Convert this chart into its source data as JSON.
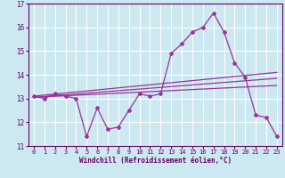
{
  "xlabel": "Windchill (Refroidissement éolien,°C)",
  "bg_color": "#cce8f0",
  "line_color": "#993399",
  "grid_color": "#ffffff",
  "xlim": [
    -0.5,
    23.5
  ],
  "ylim": [
    11,
    17
  ],
  "yticks": [
    11,
    12,
    13,
    14,
    15,
    16,
    17
  ],
  "xticks": [
    0,
    1,
    2,
    3,
    4,
    5,
    6,
    7,
    8,
    9,
    10,
    11,
    12,
    13,
    14,
    15,
    16,
    17,
    18,
    19,
    20,
    21,
    22,
    23
  ],
  "series1_x": [
    0,
    1,
    2,
    3,
    4,
    5,
    6,
    7,
    8,
    9,
    10,
    11,
    12,
    13,
    14,
    15,
    16,
    17,
    18,
    19,
    20,
    21,
    22,
    23
  ],
  "series1_y": [
    13.1,
    13.0,
    13.2,
    13.1,
    13.0,
    11.4,
    12.6,
    11.7,
    11.8,
    12.5,
    13.2,
    13.1,
    13.2,
    14.9,
    15.3,
    15.8,
    16.0,
    16.6,
    15.8,
    14.5,
    13.9,
    12.3,
    12.2,
    11.4
  ],
  "trend1_x": [
    0,
    23
  ],
  "trend1_y": [
    13.05,
    13.55
  ],
  "trend2_x": [
    0,
    23
  ],
  "trend2_y": [
    13.1,
    14.1
  ],
  "trend3_x": [
    0,
    23
  ],
  "trend3_y": [
    13.05,
    13.85
  ]
}
